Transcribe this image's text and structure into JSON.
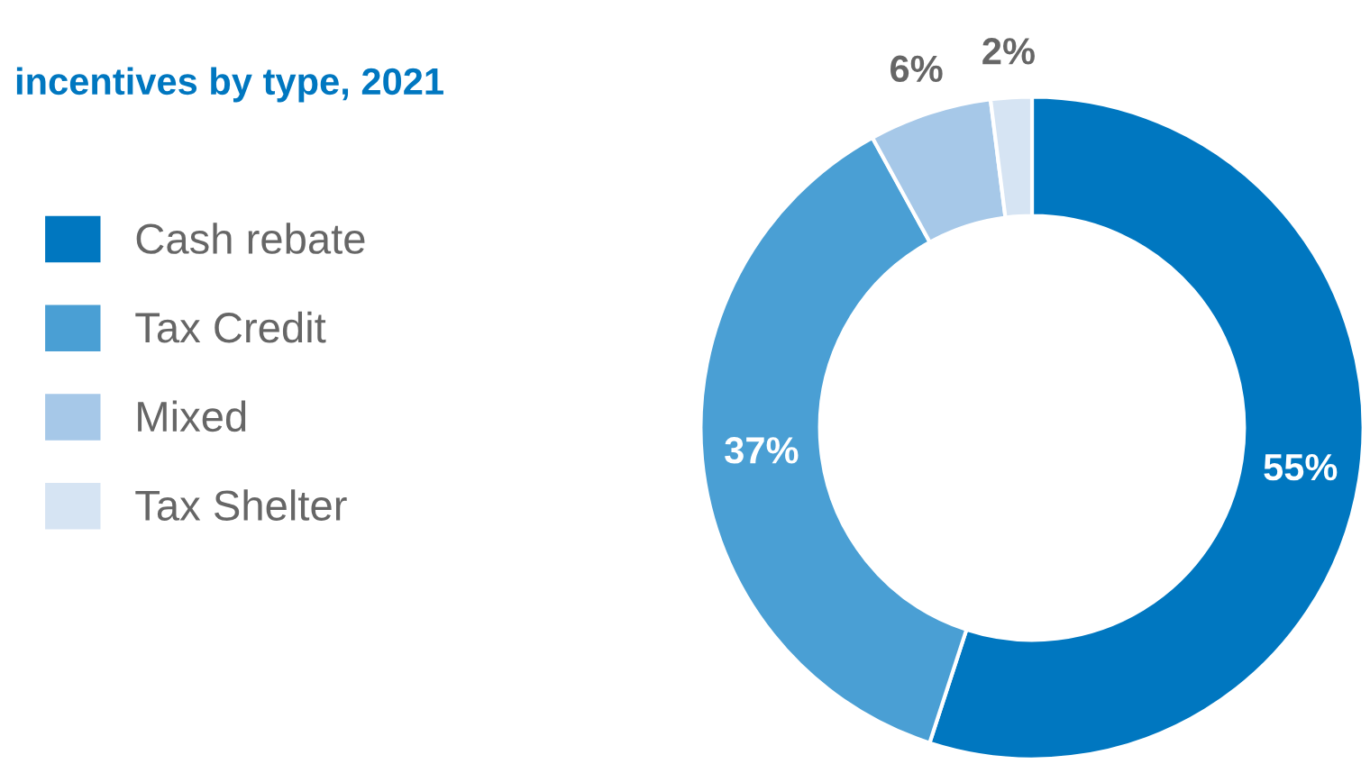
{
  "chart_data": {
    "type": "donut",
    "title": "incentives by type, 2021",
    "categories": [
      "Cash rebate",
      "Tax Credit",
      "Mixed",
      "Tax Shelter"
    ],
    "values": [
      55,
      37,
      6,
      2
    ],
    "colors": [
      "#0077c0",
      "#4a9fd4",
      "#a6c8e8",
      "#d6e4f3"
    ],
    "value_labels": [
      "55%",
      "37%",
      "6%",
      "2%"
    ],
    "legend": "left"
  }
}
